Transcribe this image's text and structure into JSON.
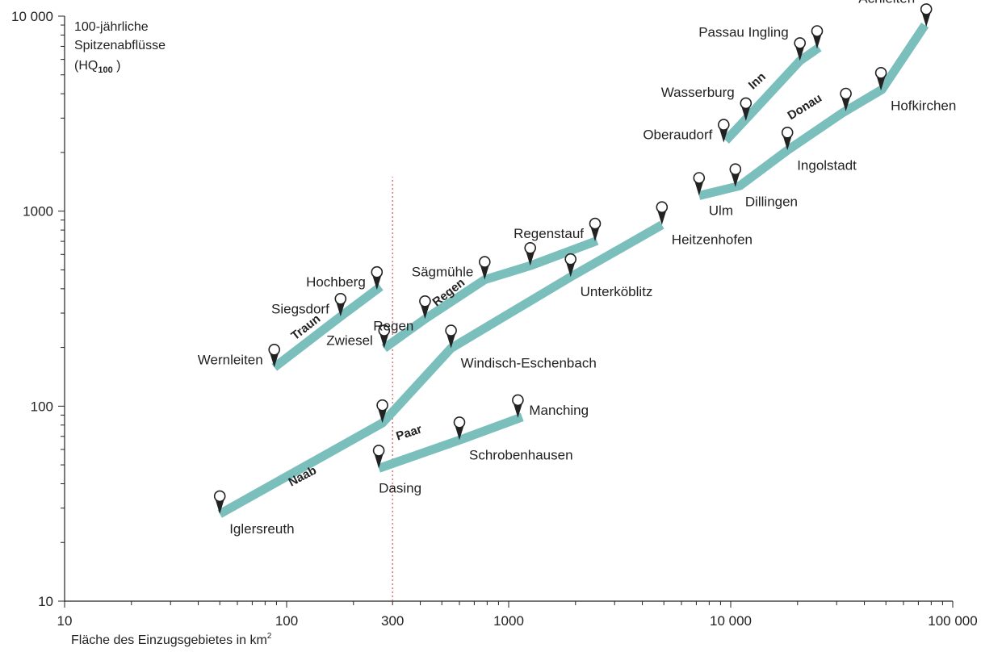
{
  "chart_data": {
    "type": "line",
    "x_scale": "log",
    "y_scale": "log",
    "xlim": [
      10,
      100000
    ],
    "ylim": [
      10,
      10000
    ],
    "grid": false,
    "xlabel": "Fläche des Einzugsgebietes in km",
    "xlabel_superscript": "2",
    "ylabel_lines": [
      "100-jährliche",
      "Spitzenabflüsse"
    ],
    "ylabel_unit_prefix": "(HQ",
    "ylabel_unit_sub": "100",
    "ylabel_unit_suffix": " )",
    "x_tick_labels": [
      {
        "value": 10,
        "label": "10"
      },
      {
        "value": 100,
        "label": "100"
      },
      {
        "value": 300,
        "label": "300"
      },
      {
        "value": 1000,
        "label": "1000"
      },
      {
        "value": 10000,
        "label": "10 000"
      },
      {
        "value": 100000,
        "label": "100 000"
      }
    ],
    "y_tick_labels": [
      {
        "value": 10,
        "label": "10"
      },
      {
        "value": 100,
        "label": "100"
      },
      {
        "value": 1000,
        "label": "1000"
      },
      {
        "value": 10000,
        "label": "10 000"
      }
    ],
    "reference_line": {
      "x": 300,
      "y_top": 1500,
      "color": "#d9534f",
      "style": "dotted"
    },
    "series_color": "#7bbfbd",
    "marker_color": "#222222",
    "series": [
      {
        "name": "Traun",
        "label_at": [
          125,
          245
        ],
        "label_angle": -38,
        "points": [
          [
            88,
            158
          ],
          [
            175,
            288
          ],
          [
            265,
            410
          ]
        ],
        "stations": [
          {
            "name": "Wernleiten",
            "x": 88,
            "y": 158,
            "label_pos": "left"
          },
          {
            "name": "Siegsdorf",
            "x": 175,
            "y": 288,
            "label_pos": "left"
          },
          {
            "name": "Hochberg",
            "x": 255,
            "y": 395,
            "label_pos": "left"
          }
        ]
      },
      {
        "name": "Regen",
        "label_at": [
          550,
          370
        ],
        "label_angle": -38,
        "points": [
          [
            275,
            198
          ],
          [
            420,
            280
          ],
          [
            780,
            445
          ],
          [
            1250,
            525
          ],
          [
            2500,
            705
          ]
        ],
        "stations": [
          {
            "name": "Zwiesel",
            "x": 275,
            "y": 198,
            "label_pos": "left"
          },
          {
            "name": "Regen",
            "x": 420,
            "y": 280,
            "label_pos": "left-below"
          },
          {
            "name": "Sägmühle",
            "x": 780,
            "y": 445,
            "label_pos": "left"
          },
          {
            "name": "",
            "x": 1250,
            "y": 525,
            "label_pos": "none"
          },
          {
            "name": "Regenstauf",
            "x": 2450,
            "y": 700,
            "label_pos": "left"
          }
        ]
      },
      {
        "name": "Naab",
        "label_at": [
          120,
          42
        ],
        "label_angle": -28,
        "points": [
          [
            50,
            28
          ],
          [
            270,
            82
          ],
          [
            550,
            198
          ],
          [
            1900,
            460
          ],
          [
            4900,
            850
          ]
        ],
        "stations": [
          {
            "name": "Iglersreuth",
            "x": 50,
            "y": 28,
            "label_pos": "right-below"
          },
          {
            "name": "",
            "x": 270,
            "y": 82,
            "label_pos": "none"
          },
          {
            "name": "Windisch-Eschenbach",
            "x": 550,
            "y": 198,
            "label_pos": "right-below"
          },
          {
            "name": "Unterköblitz",
            "x": 1900,
            "y": 460,
            "label_pos": "right-below"
          },
          {
            "name": "Heitzenhofen",
            "x": 4900,
            "y": 850,
            "label_pos": "right-below"
          }
        ]
      },
      {
        "name": "Paar",
        "label_at": [
          360,
          70
        ],
        "label_angle": -18,
        "points": [
          [
            260,
            48
          ],
          [
            600,
            67
          ],
          [
            1150,
            88
          ]
        ],
        "stations": [
          {
            "name": "Dasing",
            "x": 260,
            "y": 48,
            "label_pos": "below"
          },
          {
            "name": "Schrobenhausen",
            "x": 600,
            "y": 67,
            "label_pos": "right-below"
          },
          {
            "name": "Manching",
            "x": 1100,
            "y": 87,
            "label_pos": "right"
          }
        ]
      },
      {
        "name": "Donau",
        "label_at": [
          22000,
          3300
        ],
        "label_angle": -32,
        "points": [
          [
            7200,
            1200
          ],
          [
            11000,
            1350
          ],
          [
            18000,
            2050
          ],
          [
            32000,
            3200
          ],
          [
            48000,
            4200
          ],
          [
            75000,
            9000
          ]
        ],
        "stations": [
          {
            "name": "Ulm",
            "x": 7200,
            "y": 1200,
            "label_pos": "right-below"
          },
          {
            "name": "Dillingen",
            "x": 10500,
            "y": 1330,
            "label_pos": "right-below"
          },
          {
            "name": "Ingolstadt",
            "x": 18000,
            "y": 2050,
            "label_pos": "right-below"
          },
          {
            "name": "",
            "x": 33000,
            "y": 3250,
            "label_pos": "none"
          },
          {
            "name": "Hofkirchen",
            "x": 47500,
            "y": 4150,
            "label_pos": "right-below"
          },
          {
            "name": "Achleiten",
            "x": 76000,
            "y": 8800,
            "label_pos": "left-above"
          }
        ]
      },
      {
        "name": "Inn",
        "label_at": [
          13500,
          4500
        ],
        "label_angle": -42,
        "points": [
          [
            9500,
            2300
          ],
          [
            11500,
            2900
          ],
          [
            20500,
            5900
          ],
          [
            25000,
            6900
          ]
        ],
        "stations": [
          {
            "name": "Oberaudorf",
            "x": 9300,
            "y": 2250,
            "label_pos": "left"
          },
          {
            "name": "Wasserburg",
            "x": 11700,
            "y": 2900,
            "label_pos": "left-above"
          },
          {
            "name": "Passau Ingling",
            "x": 20500,
            "y": 5900,
            "label_pos": "left-above"
          },
          {
            "name": "",
            "x": 24500,
            "y": 6800,
            "label_pos": "none"
          }
        ]
      }
    ]
  }
}
